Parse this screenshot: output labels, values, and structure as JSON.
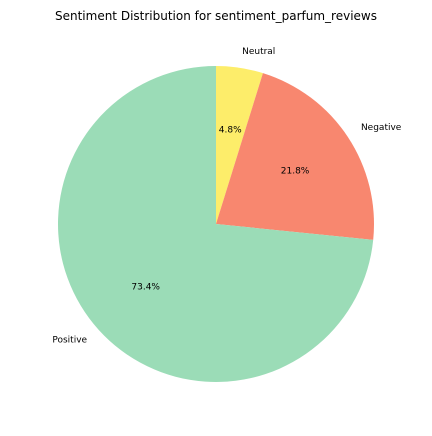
{
  "chart_data": {
    "type": "pie",
    "title": "Sentiment Distribution for sentiment_parfum_reviews",
    "start_angle_deg": 90,
    "direction": "clockwise",
    "slices": [
      {
        "label": "Neutral",
        "value": 4.8,
        "pct_label": "4.8%",
        "color": "#fded6a"
      },
      {
        "label": "Negative",
        "value": 21.8,
        "pct_label": "21.8%",
        "color": "#f8876f"
      },
      {
        "label": "Positive",
        "value": 73.4,
        "pct_label": "73.4%",
        "color": "#9bdcb7"
      }
    ]
  }
}
